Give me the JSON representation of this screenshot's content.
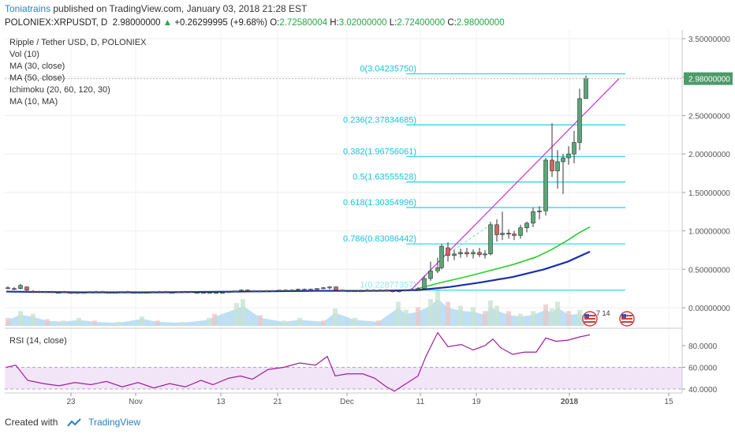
{
  "header": {
    "author": "Toniatrains",
    "published": "published on TradingView.com, January 03, 2018 21:28 EST",
    "symbol": "POLONIEX:XRPUSDT, D",
    "last": "2.98000000",
    "arrow": "▲",
    "change": "+0.26299995 (+9.68%)",
    "o_label": "O:",
    "o": "2.72580004",
    "h_label": "H:",
    "h": "3.02000000",
    "l_label": "L:",
    "l": "2.72400000",
    "c_label": "C:",
    "c": "2.98000000"
  },
  "legend": [
    "Ripple / Tether USD, D, POLONIEX",
    "Vol (10)",
    "MA (30, close)",
    "MA (50, close)",
    "Ichimoku (20, 60, 120, 30)",
    "MA (10, MA)"
  ],
  "rsi_legend": "RSI (14, close)",
  "footer": {
    "created_with": "Created with",
    "brand": "TradingView"
  },
  "colors": {
    "fib": "#22d3e6",
    "fib_text": "#14c3d8",
    "ma30": "#29cc29",
    "ma50": "#1a2fa8",
    "trend": "#cc33cc",
    "up": "#4d9a6a",
    "down": "#c84a4a",
    "price_badge": "#ffffff",
    "rsi": "#9c1f9c",
    "rsi_band": "#f2e5f8",
    "volume": "#a9d4ee"
  },
  "chart_data": {
    "type": "candlestick",
    "title": "Ripple / Tether USD, D, POLONIEX",
    "price_axis": {
      "ticks": [
        "3.50000000",
        "3.00000000",
        "2.50000000",
        "2.00000000",
        "1.50000000",
        "1.00000000",
        "0.50000000",
        "0.00000000"
      ],
      "ylim": [
        -0.3,
        3.55
      ]
    },
    "current_price": "2.98000000",
    "x_ticks": [
      "23",
      "Nov",
      "13",
      "21",
      "Dec",
      "11",
      "19",
      "2018",
      "15"
    ],
    "fib_levels": [
      {
        "label": "0(3.04235750)",
        "value": 3.0424
      },
      {
        "label": "0.236(2.37834685)",
        "value": 2.3783
      },
      {
        "label": "0.382(1.96756061)",
        "value": 1.9676
      },
      {
        "label": "0.5(1.63555528)",
        "value": 1.6356
      },
      {
        "label": "0.618(1.30354996)",
        "value": 1.3035
      },
      {
        "label": "0.786(0.83086442)",
        "value": 0.8309
      },
      {
        "label": "1(0.22877357)",
        "value": 0.2288
      }
    ],
    "candles": [
      {
        "x": 10,
        "o": 0.26,
        "h": 0.28,
        "l": 0.24,
        "c": 0.25
      },
      {
        "x": 18,
        "o": 0.25,
        "h": 0.27,
        "l": 0.23,
        "c": 0.24
      },
      {
        "x": 26,
        "o": 0.25,
        "h": 0.31,
        "l": 0.24,
        "c": 0.29
      },
      {
        "x": 34,
        "o": 0.27,
        "h": 0.28,
        "l": 0.22,
        "c": 0.23
      },
      {
        "x": 42,
        "o": 0.21,
        "h": 0.23,
        "l": 0.19,
        "c": 0.2
      },
      {
        "x": 50,
        "o": 0.21,
        "h": 0.22,
        "l": 0.19,
        "c": 0.2
      },
      {
        "x": 58,
        "o": 0.2,
        "h": 0.22,
        "l": 0.19,
        "c": 0.21
      },
      {
        "x": 66,
        "o": 0.21,
        "h": 0.22,
        "l": 0.19,
        "c": 0.2
      },
      {
        "x": 74,
        "o": 0.2,
        "h": 0.21,
        "l": 0.19,
        "c": 0.2
      },
      {
        "x": 82,
        "o": 0.21,
        "h": 0.22,
        "l": 0.19,
        "c": 0.2
      },
      {
        "x": 90,
        "o": 0.2,
        "h": 0.21,
        "l": 0.18,
        "c": 0.19
      },
      {
        "x": 98,
        "o": 0.19,
        "h": 0.21,
        "l": 0.18,
        "c": 0.2
      },
      {
        "x": 106,
        "o": 0.2,
        "h": 0.21,
        "l": 0.19,
        "c": 0.2
      },
      {
        "x": 114,
        "o": 0.2,
        "h": 0.21,
        "l": 0.19,
        "c": 0.21
      },
      {
        "x": 122,
        "o": 0.21,
        "h": 0.22,
        "l": 0.2,
        "c": 0.21
      },
      {
        "x": 130,
        "o": 0.21,
        "h": 0.22,
        "l": 0.2,
        "c": 0.2
      },
      {
        "x": 138,
        "o": 0.2,
        "h": 0.21,
        "l": 0.19,
        "c": 0.2
      },
      {
        "x": 146,
        "o": 0.2,
        "h": 0.21,
        "l": 0.19,
        "c": 0.2
      },
      {
        "x": 154,
        "o": 0.2,
        "h": 0.21,
        "l": 0.19,
        "c": 0.21
      },
      {
        "x": 162,
        "o": 0.21,
        "h": 0.22,
        "l": 0.2,
        "c": 0.2
      },
      {
        "x": 170,
        "o": 0.2,
        "h": 0.21,
        "l": 0.19,
        "c": 0.2
      },
      {
        "x": 178,
        "o": 0.2,
        "h": 0.21,
        "l": 0.19,
        "c": 0.2
      },
      {
        "x": 186,
        "o": 0.2,
        "h": 0.21,
        "l": 0.19,
        "c": 0.2
      },
      {
        "x": 194,
        "o": 0.2,
        "h": 0.21,
        "l": 0.19,
        "c": 0.21
      },
      {
        "x": 202,
        "o": 0.21,
        "h": 0.22,
        "l": 0.2,
        "c": 0.21
      },
      {
        "x": 210,
        "o": 0.21,
        "h": 0.22,
        "l": 0.2,
        "c": 0.2
      },
      {
        "x": 218,
        "o": 0.2,
        "h": 0.21,
        "l": 0.19,
        "c": 0.2
      },
      {
        "x": 226,
        "o": 0.2,
        "h": 0.21,
        "l": 0.19,
        "c": 0.21
      },
      {
        "x": 234,
        "o": 0.21,
        "h": 0.22,
        "l": 0.2,
        "c": 0.21
      },
      {
        "x": 242,
        "o": 0.21,
        "h": 0.22,
        "l": 0.2,
        "c": 0.2
      },
      {
        "x": 250,
        "o": 0.2,
        "h": 0.21,
        "l": 0.19,
        "c": 0.2
      },
      {
        "x": 258,
        "o": 0.2,
        "h": 0.21,
        "l": 0.19,
        "c": 0.2
      },
      {
        "x": 266,
        "o": 0.2,
        "h": 0.21,
        "l": 0.19,
        "c": 0.2
      },
      {
        "x": 274,
        "o": 0.2,
        "h": 0.21,
        "l": 0.19,
        "c": 0.2
      },
      {
        "x": 282,
        "o": 0.2,
        "h": 0.21,
        "l": 0.19,
        "c": 0.2
      },
      {
        "x": 290,
        "o": 0.2,
        "h": 0.22,
        "l": 0.19,
        "c": 0.21
      },
      {
        "x": 298,
        "o": 0.21,
        "h": 0.22,
        "l": 0.2,
        "c": 0.22
      },
      {
        "x": 306,
        "o": 0.22,
        "h": 0.24,
        "l": 0.21,
        "c": 0.23
      },
      {
        "x": 314,
        "o": 0.23,
        "h": 0.24,
        "l": 0.21,
        "c": 0.22
      },
      {
        "x": 322,
        "o": 0.22,
        "h": 0.23,
        "l": 0.21,
        "c": 0.22
      },
      {
        "x": 330,
        "o": 0.22,
        "h": 0.23,
        "l": 0.21,
        "c": 0.22
      },
      {
        "x": 338,
        "o": 0.22,
        "h": 0.23,
        "l": 0.21,
        "c": 0.22
      },
      {
        "x": 346,
        "o": 0.22,
        "h": 0.23,
        "l": 0.21,
        "c": 0.22
      },
      {
        "x": 354,
        "o": 0.22,
        "h": 0.23,
        "l": 0.21,
        "c": 0.23
      },
      {
        "x": 362,
        "o": 0.23,
        "h": 0.24,
        "l": 0.22,
        "c": 0.23
      },
      {
        "x": 370,
        "o": 0.23,
        "h": 0.24,
        "l": 0.22,
        "c": 0.23
      },
      {
        "x": 378,
        "o": 0.23,
        "h": 0.25,
        "l": 0.22,
        "c": 0.24
      },
      {
        "x": 386,
        "o": 0.24,
        "h": 0.25,
        "l": 0.23,
        "c": 0.24
      },
      {
        "x": 394,
        "o": 0.24,
        "h": 0.25,
        "l": 0.23,
        "c": 0.24
      },
      {
        "x": 402,
        "o": 0.24,
        "h": 0.25,
        "l": 0.23,
        "c": 0.25
      },
      {
        "x": 410,
        "o": 0.25,
        "h": 0.27,
        "l": 0.24,
        "c": 0.26
      },
      {
        "x": 418,
        "o": 0.26,
        "h": 0.28,
        "l": 0.24,
        "c": 0.27
      },
      {
        "x": 426,
        "o": 0.27,
        "h": 0.28,
        "l": 0.22,
        "c": 0.23
      },
      {
        "x": 434,
        "o": 0.23,
        "h": 0.24,
        "l": 0.21,
        "c": 0.22
      },
      {
        "x": 442,
        "o": 0.22,
        "h": 0.23,
        "l": 0.21,
        "c": 0.22
      },
      {
        "x": 450,
        "o": 0.22,
        "h": 0.23,
        "l": 0.21,
        "c": 0.22
      },
      {
        "x": 458,
        "o": 0.22,
        "h": 0.23,
        "l": 0.21,
        "c": 0.22
      },
      {
        "x": 466,
        "o": 0.22,
        "h": 0.24,
        "l": 0.21,
        "c": 0.23
      },
      {
        "x": 474,
        "o": 0.23,
        "h": 0.24,
        "l": 0.22,
        "c": 0.23
      },
      {
        "x": 482,
        "o": 0.23,
        "h": 0.24,
        "l": 0.22,
        "c": 0.23
      },
      {
        "x": 490,
        "o": 0.23,
        "h": 0.24,
        "l": 0.21,
        "c": 0.22
      },
      {
        "x": 498,
        "o": 0.22,
        "h": 0.23,
        "l": 0.2,
        "c": 0.21
      },
      {
        "x": 506,
        "o": 0.21,
        "h": 0.23,
        "l": 0.2,
        "c": 0.22
      },
      {
        "x": 514,
        "o": 0.22,
        "h": 0.24,
        "l": 0.21,
        "c": 0.23
      },
      {
        "x": 522,
        "o": 0.23,
        "h": 0.25,
        "l": 0.22,
        "c": 0.24
      },
      {
        "x": 530,
        "o": 0.24,
        "h": 0.27,
        "l": 0.23,
        "c": 0.25
      },
      {
        "x": 538,
        "o": 0.25,
        "h": 0.42,
        "l": 0.24,
        "c": 0.38
      },
      {
        "x": 546,
        "o": 0.38,
        "h": 0.6,
        "l": 0.35,
        "c": 0.48
      },
      {
        "x": 555,
        "o": 0.48,
        "h": 0.65,
        "l": 0.45,
        "c": 0.52
      },
      {
        "x": 560,
        "o": 0.52,
        "h": 0.83,
        "l": 0.5,
        "c": 0.8
      },
      {
        "x": 568,
        "o": 0.78,
        "h": 0.85,
        "l": 0.6,
        "c": 0.68
      },
      {
        "x": 576,
        "o": 0.68,
        "h": 0.75,
        "l": 0.62,
        "c": 0.7
      },
      {
        "x": 584,
        "o": 0.7,
        "h": 0.77,
        "l": 0.65,
        "c": 0.72
      },
      {
        "x": 592,
        "o": 0.72,
        "h": 0.78,
        "l": 0.66,
        "c": 0.7
      },
      {
        "x": 600,
        "o": 0.7,
        "h": 0.76,
        "l": 0.64,
        "c": 0.72
      },
      {
        "x": 608,
        "o": 0.72,
        "h": 0.78,
        "l": 0.66,
        "c": 0.69
      },
      {
        "x": 615,
        "o": 0.69,
        "h": 0.75,
        "l": 0.64,
        "c": 0.7
      },
      {
        "x": 622,
        "o": 0.7,
        "h": 1.12,
        "l": 0.68,
        "c": 1.08
      },
      {
        "x": 630,
        "o": 1.08,
        "h": 1.15,
        "l": 0.86,
        "c": 0.95
      },
      {
        "x": 637,
        "o": 0.95,
        "h": 1.25,
        "l": 0.88,
        "c": 0.97
      },
      {
        "x": 645,
        "o": 0.97,
        "h": 1.02,
        "l": 0.9,
        "c": 0.96
      },
      {
        "x": 652,
        "o": 0.96,
        "h": 1.0,
        "l": 0.88,
        "c": 0.94
      },
      {
        "x": 660,
        "o": 0.94,
        "h": 1.08,
        "l": 0.9,
        "c": 1.04
      },
      {
        "x": 668,
        "o": 1.04,
        "h": 1.12,
        "l": 0.98,
        "c": 1.1
      },
      {
        "x": 676,
        "o": 1.1,
        "h": 1.3,
        "l": 1.05,
        "c": 1.25
      },
      {
        "x": 684,
        "o": 1.25,
        "h": 1.32,
        "l": 1.15,
        "c": 1.26
      },
      {
        "x": 692,
        "o": 1.26,
        "h": 1.95,
        "l": 1.2,
        "c": 1.92
      },
      {
        "x": 700,
        "o": 1.92,
        "h": 2.4,
        "l": 1.7,
        "c": 1.78
      },
      {
        "x": 707,
        "o": 1.78,
        "h": 2.05,
        "l": 1.55,
        "c": 1.9
      },
      {
        "x": 714,
        "o": 1.9,
        "h": 2.0,
        "l": 1.48,
        "c": 1.95
      },
      {
        "x": 721,
        "o": 1.95,
        "h": 2.1,
        "l": 1.86,
        "c": 2.0
      },
      {
        "x": 728,
        "o": 2.0,
        "h": 2.3,
        "l": 1.88,
        "c": 2.15
      },
      {
        "x": 735,
        "o": 2.15,
        "h": 2.85,
        "l": 2.05,
        "c": 2.72
      },
      {
        "x": 743,
        "o": 2.72,
        "h": 3.02,
        "l": 2.72,
        "c": 2.98
      }
    ],
    "ma30": [
      {
        "x": 530,
        "y": 0.25
      },
      {
        "x": 560,
        "y": 0.33
      },
      {
        "x": 590,
        "y": 0.4
      },
      {
        "x": 620,
        "y": 0.48
      },
      {
        "x": 650,
        "y": 0.56
      },
      {
        "x": 680,
        "y": 0.66
      },
      {
        "x": 700,
        "y": 0.76
      },
      {
        "x": 720,
        "y": 0.88
      },
      {
        "x": 735,
        "y": 0.98
      },
      {
        "x": 748,
        "y": 1.05
      }
    ],
    "ma50": [
      {
        "x": 8,
        "y": 0.21
      },
      {
        "x": 100,
        "y": 0.2
      },
      {
        "x": 200,
        "y": 0.2
      },
      {
        "x": 300,
        "y": 0.21
      },
      {
        "x": 400,
        "y": 0.22
      },
      {
        "x": 480,
        "y": 0.22
      },
      {
        "x": 530,
        "y": 0.23
      },
      {
        "x": 570,
        "y": 0.27
      },
      {
        "x": 610,
        "y": 0.33
      },
      {
        "x": 650,
        "y": 0.4
      },
      {
        "x": 690,
        "y": 0.5
      },
      {
        "x": 720,
        "y": 0.6
      },
      {
        "x": 748,
        "y": 0.73
      }
    ],
    "trend_line": [
      {
        "x": 520,
        "y": 0.22
      },
      {
        "x": 785,
        "y": 2.98
      }
    ],
    "volume": [
      {
        "x": 10,
        "v": 0.3
      },
      {
        "x": 26,
        "v": 0.55
      },
      {
        "x": 42,
        "v": 0.45
      },
      {
        "x": 60,
        "v": 0.25
      },
      {
        "x": 80,
        "v": 0.2
      },
      {
        "x": 100,
        "v": 0.3
      },
      {
        "x": 120,
        "v": 0.2
      },
      {
        "x": 150,
        "v": 0.15
      },
      {
        "x": 180,
        "v": 0.35
      },
      {
        "x": 200,
        "v": 0.2
      },
      {
        "x": 230,
        "v": 0.15
      },
      {
        "x": 265,
        "v": 0.3
      },
      {
        "x": 272,
        "v": 0.45
      },
      {
        "x": 300,
        "v": 0.85
      },
      {
        "x": 308,
        "v": 1.0
      },
      {
        "x": 330,
        "v": 0.4
      },
      {
        "x": 360,
        "v": 0.2
      },
      {
        "x": 380,
        "v": 0.3
      },
      {
        "x": 410,
        "v": 0.2
      },
      {
        "x": 425,
        "v": 0.65
      },
      {
        "x": 450,
        "v": 0.3
      },
      {
        "x": 480,
        "v": 0.2
      },
      {
        "x": 505,
        "v": 0.9
      },
      {
        "x": 515,
        "v": 0.6
      },
      {
        "x": 530,
        "v": 0.7
      },
      {
        "x": 546,
        "v": 1.0
      },
      {
        "x": 555,
        "v": 1.35
      },
      {
        "x": 568,
        "v": 0.9
      },
      {
        "x": 584,
        "v": 0.75
      },
      {
        "x": 600,
        "v": 0.7
      },
      {
        "x": 615,
        "v": 0.55
      },
      {
        "x": 622,
        "v": 0.95
      },
      {
        "x": 630,
        "v": 0.75
      },
      {
        "x": 645,
        "v": 0.55
      },
      {
        "x": 660,
        "v": 0.45
      },
      {
        "x": 676,
        "v": 0.55
      },
      {
        "x": 692,
        "v": 0.8
      },
      {
        "x": 700,
        "v": 0.65
      },
      {
        "x": 707,
        "v": 0.9
      },
      {
        "x": 721,
        "v": 0.55
      },
      {
        "x": 735,
        "v": 0.6
      },
      {
        "x": 743,
        "v": 0.45
      }
    ],
    "rsi": {
      "ticks": [
        "80.0000",
        "60.0000",
        "40.0000"
      ],
      "band": [
        40,
        60
      ],
      "values": [
        {
          "x": 8,
          "y": 60
        },
        {
          "x": 20,
          "y": 62
        },
        {
          "x": 35,
          "y": 48
        },
        {
          "x": 55,
          "y": 45
        },
        {
          "x": 75,
          "y": 43
        },
        {
          "x": 95,
          "y": 46
        },
        {
          "x": 115,
          "y": 44
        },
        {
          "x": 135,
          "y": 47
        },
        {
          "x": 155,
          "y": 42
        },
        {
          "x": 175,
          "y": 46
        },
        {
          "x": 195,
          "y": 41
        },
        {
          "x": 215,
          "y": 45
        },
        {
          "x": 235,
          "y": 42
        },
        {
          "x": 255,
          "y": 48
        },
        {
          "x": 270,
          "y": 44
        },
        {
          "x": 290,
          "y": 50
        },
        {
          "x": 305,
          "y": 52
        },
        {
          "x": 320,
          "y": 49
        },
        {
          "x": 340,
          "y": 58
        },
        {
          "x": 360,
          "y": 60
        },
        {
          "x": 380,
          "y": 64
        },
        {
          "x": 400,
          "y": 62
        },
        {
          "x": 415,
          "y": 70
        },
        {
          "x": 425,
          "y": 52
        },
        {
          "x": 440,
          "y": 54
        },
        {
          "x": 460,
          "y": 54
        },
        {
          "x": 475,
          "y": 50
        },
        {
          "x": 490,
          "y": 42
        },
        {
          "x": 500,
          "y": 38
        },
        {
          "x": 515,
          "y": 45
        },
        {
          "x": 530,
          "y": 52
        },
        {
          "x": 540,
          "y": 70
        },
        {
          "x": 555,
          "y": 92
        },
        {
          "x": 568,
          "y": 79
        },
        {
          "x": 585,
          "y": 81
        },
        {
          "x": 600,
          "y": 76
        },
        {
          "x": 615,
          "y": 80
        },
        {
          "x": 625,
          "y": 86
        },
        {
          "x": 635,
          "y": 78
        },
        {
          "x": 650,
          "y": 72
        },
        {
          "x": 665,
          "y": 74
        },
        {
          "x": 680,
          "y": 74
        },
        {
          "x": 692,
          "y": 87
        },
        {
          "x": 705,
          "y": 84
        },
        {
          "x": 720,
          "y": 85
        },
        {
          "x": 735,
          "y": 88
        },
        {
          "x": 748,
          "y": 90
        }
      ]
    }
  }
}
